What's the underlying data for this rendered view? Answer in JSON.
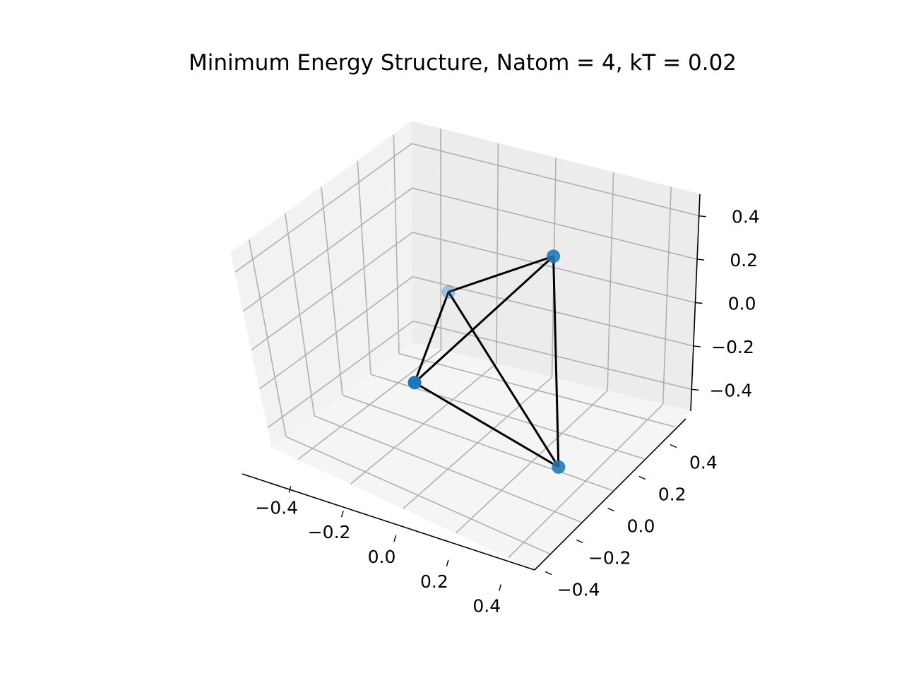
{
  "chart_data": {
    "type": "scatter",
    "projection": "3d",
    "title": "Minimum Energy Structure, Natom = 4, kT = 0.02",
    "xlabel": "",
    "ylabel": "",
    "zlabel": "",
    "xlim": [
      -0.5,
      0.5
    ],
    "ylim": [
      -0.5,
      0.5
    ],
    "zlim": [
      -0.5,
      0.5
    ],
    "x_ticks": [
      -0.4,
      -0.2,
      0.0,
      0.2,
      0.4
    ],
    "y_ticks": [
      -0.4,
      -0.2,
      0.0,
      0.2,
      0.4
    ],
    "z_ticks": [
      -0.4,
      -0.2,
      0.0,
      0.2,
      0.4
    ],
    "x_tick_labels": [
      "−0.4",
      "−0.2",
      "0.0",
      "0.2",
      "0.4"
    ],
    "y_tick_labels": [
      "−0.4",
      "−0.2",
      "0.0",
      "0.2",
      "0.4"
    ],
    "z_tick_labels": [
      "−0.4",
      "−0.2",
      "0.0",
      "0.2",
      "0.4"
    ],
    "grid": true,
    "points": [
      {
        "x": -0.2,
        "y": 0.2,
        "z": 0.0
      },
      {
        "x": 0.0,
        "y": -0.35,
        "z": 0.0
      },
      {
        "x": 0.3,
        "y": 0.0,
        "z": 0.48
      },
      {
        "x": 0.3,
        "y": 0.0,
        "z": -0.48
      }
    ],
    "bonds": [
      [
        0,
        1
      ],
      [
        0,
        2
      ],
      [
        0,
        3
      ],
      [
        1,
        2
      ],
      [
        1,
        3
      ],
      [
        2,
        3
      ]
    ],
    "marker_color": "#1f77b4",
    "line_color": "#000000"
  }
}
